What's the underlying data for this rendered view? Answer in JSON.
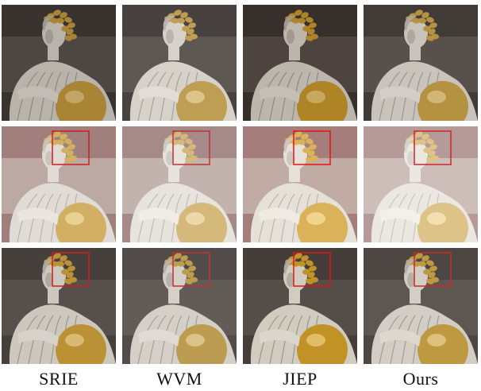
{
  "figure": {
    "methods": [
      "SRIE",
      "WVM",
      "JIEP",
      "Ours"
    ]
  },
  "rows": [
    {
      "tone": "dim",
      "bg": "#3e3733",
      "highlight_box": false
    },
    {
      "tone": "overexposed",
      "bg": "#8a5a58",
      "highlight_box": true
    },
    {
      "tone": "balanced",
      "bg": "#4b4440",
      "highlight_box": true
    }
  ],
  "colors": {
    "highlight_box": "#e01a1a",
    "gold": "#c99a2e",
    "statue": "#d8d3c8"
  }
}
